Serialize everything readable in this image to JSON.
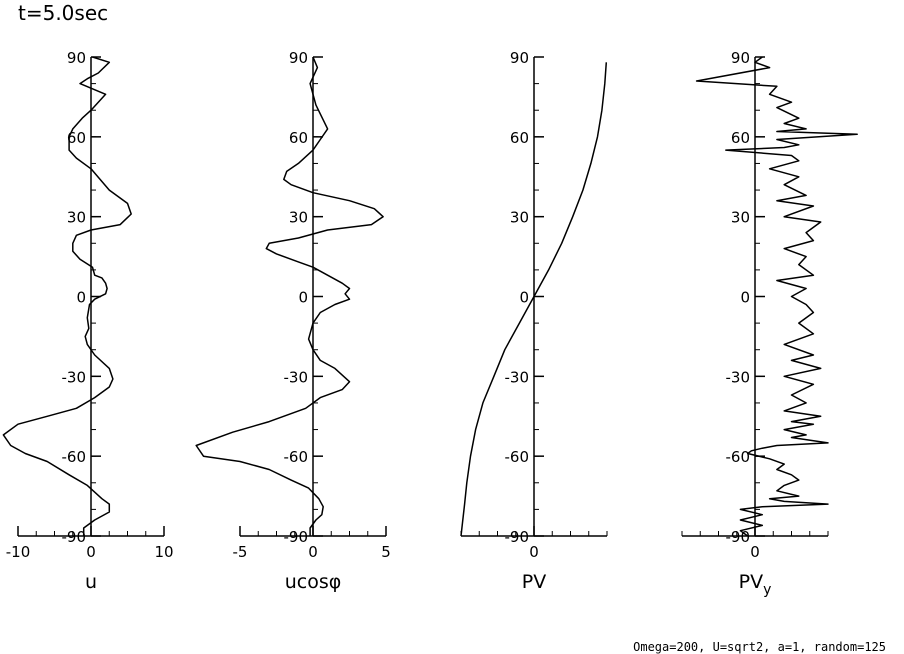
{
  "title": "t=5.0sec",
  "footer": "Omega=200, U=sqrt2, a=1, random=125",
  "chart_data": [
    {
      "type": "line",
      "id": "u",
      "xlabel": "u",
      "ylabel": "",
      "xlim": [
        -10,
        10
      ],
      "ylim": [
        -90,
        90
      ],
      "xticks": [
        -10,
        0,
        10
      ],
      "xtick_labels": [
        "-10",
        "0",
        "10"
      ],
      "yticks": [
        -90,
        -60,
        -30,
        0,
        30,
        60,
        90
      ],
      "ytick_labels": [
        "-90",
        "-60",
        "-30",
        "0",
        "30",
        "60",
        "90"
      ],
      "series": [
        {
          "name": "u",
          "x": [
            0.2,
            2.5,
            1.0,
            -0.4,
            -1.5,
            2.0,
            0.0,
            -1.2,
            -2.5,
            -3.0,
            -3.0,
            -2.0,
            0.0,
            2.5,
            5.0,
            5.5,
            4.0,
            0.0,
            -2.0,
            -2.5,
            -2.5,
            -1.5,
            0.2,
            0.5,
            1.5,
            2.0,
            2.2,
            2.0,
            0.5,
            -0.2,
            -0.5,
            -0.3,
            -0.8,
            -0.5,
            0.5,
            2.5,
            3.0,
            2.5,
            0.5,
            -2.0,
            -6.0,
            -10.0,
            -12.0,
            -11.0,
            -9.0,
            -6.0,
            -3.0,
            -0.5,
            1.5,
            2.5,
            2.5,
            0.5,
            -1.0,
            -1.0
          ],
          "y": [
            90,
            88,
            84,
            82,
            80,
            76,
            70,
            67,
            63,
            60,
            55,
            52,
            48,
            40,
            35,
            31,
            27,
            25,
            23,
            20,
            17,
            14,
            11,
            8,
            7,
            5,
            3,
            1,
            -1,
            -3,
            -8,
            -12,
            -15,
            -18,
            -22,
            -27,
            -31,
            -34,
            -38,
            -42,
            -45,
            -48,
            -52,
            -56,
            -59,
            -62,
            -67,
            -71,
            -76,
            -78,
            -81,
            -84,
            -87,
            -90
          ]
        }
      ]
    },
    {
      "type": "line",
      "id": "ucos",
      "xlabel": "ucosφ",
      "ylabel": "",
      "xlim": [
        -5,
        5
      ],
      "ylim": [
        -90,
        90
      ],
      "xticks": [
        -5,
        0,
        5
      ],
      "xtick_labels": [
        "-5",
        "0",
        "5"
      ],
      "yticks": [
        -90,
        -60,
        -30,
        0,
        30,
        60,
        90
      ],
      "ytick_labels": [
        "-90",
        "-60",
        "-30",
        "0",
        "30",
        "60",
        "90"
      ],
      "series": [
        {
          "name": "ucosφ",
          "x": [
            0.0,
            0.3,
            -0.2,
            0.0,
            0.2,
            1.0,
            0.5,
            0.0,
            -1.0,
            -1.8,
            -2.0,
            -1.5,
            0.0,
            2.5,
            4.2,
            4.8,
            4.0,
            1.0,
            -1.0,
            -3.0,
            -3.2,
            -2.5,
            -1.0,
            0.0,
            1.0,
            2.0,
            2.5,
            2.2,
            2.5,
            1.5,
            0.5,
            0.0,
            -0.3,
            0.0,
            0.5,
            1.5,
            2.5,
            2.0,
            0.5,
            -0.5,
            -3.0,
            -5.5,
            -8.0,
            -7.5,
            -5.0,
            -3.0,
            -1.5,
            -0.3,
            0.4,
            0.7,
            0.6,
            0.2,
            -0.2,
            -0.2
          ],
          "y": [
            90,
            86,
            80,
            76,
            72,
            63,
            59,
            55,
            50,
            47,
            44,
            42,
            39,
            36,
            33,
            30,
            27,
            25,
            22,
            20,
            18,
            16,
            13,
            11,
            8,
            5,
            3,
            1,
            -1,
            -3,
            -6,
            -10,
            -16,
            -20,
            -24,
            -27,
            -32,
            -35,
            -38,
            -42,
            -47,
            -51,
            -56,
            -60,
            -62,
            -65,
            -69,
            -72,
            -76,
            -79,
            -82,
            -84,
            -87,
            -90
          ]
        }
      ]
    },
    {
      "type": "line",
      "id": "pv",
      "xlabel": "PV",
      "ylabel": "",
      "xlim": [
        -1,
        1
      ],
      "ylim": [
        -90,
        90
      ],
      "xticks": [
        0
      ],
      "xtick_labels": [
        "0"
      ],
      "yticks": [
        -90,
        -60,
        -30,
        0,
        30,
        60,
        90
      ],
      "ytick_labels": [
        "-90",
        "-60",
        "-30",
        "0",
        "30",
        "60",
        "90"
      ],
      "series": [
        {
          "name": "PV",
          "x": [
            -1.0,
            -0.98,
            -0.95,
            -0.92,
            -0.87,
            -0.8,
            -0.7,
            -0.55,
            -0.4,
            -0.2,
            0.0,
            0.2,
            0.38,
            0.53,
            0.67,
            0.78,
            0.87,
            0.93,
            0.97,
            0.99
          ],
          "y": [
            -90,
            -85,
            -78,
            -70,
            -60,
            -50,
            -40,
            -30,
            -20,
            -10,
            0,
            10,
            20,
            30,
            40,
            50,
            60,
            70,
            80,
            88
          ]
        }
      ]
    },
    {
      "type": "line",
      "id": "pvy",
      "xlabel": "PV",
      "xlabel_sub": "y",
      "ylabel": "",
      "xlim": [
        -1,
        1
      ],
      "ylim": [
        -90,
        90
      ],
      "xticks": [
        0
      ],
      "xtick_labels": [
        "0"
      ],
      "yticks": [
        -90,
        -60,
        -30,
        0,
        30,
        60,
        90
      ],
      "ytick_labels": [
        "-90",
        "-60",
        "-30",
        "0",
        "30",
        "60",
        "90"
      ],
      "series": [
        {
          "name": "PVy",
          "x": [
            0.1,
            0.0,
            0.2,
            -0.8,
            0.3,
            0.2,
            0.5,
            0.3,
            0.6,
            0.4,
            0.7,
            0.3,
            1.4,
            0.3,
            0.6,
            0.4,
            -0.4,
            0.5,
            0.6,
            0.2,
            0.6,
            0.4,
            0.7,
            0.3,
            0.8,
            0.4,
            0.9,
            0.7,
            0.8,
            0.4,
            0.7,
            0.6,
            0.8,
            0.3,
            0.7,
            0.5,
            0.7,
            0.8,
            0.6,
            0.8,
            0.4,
            0.8,
            0.5,
            0.9,
            0.4,
            0.8,
            0.5,
            0.7,
            0.4,
            0.9,
            0.5,
            0.8,
            0.4,
            0.7,
            0.5,
            1.0,
            0.3,
            0.1,
            -0.05,
            -0.1,
            0.2,
            0.4,
            0.3,
            0.5,
            0.6,
            0.4,
            0.3,
            0.6,
            0.2,
            0.4,
            1.0,
            0.1,
            -0.2,
            0.1,
            -0.2,
            0.1,
            -0.2,
            -0.1
          ],
          "y": [
            90,
            88,
            86,
            81,
            79,
            76,
            73,
            71,
            67,
            65,
            63,
            62,
            61,
            59,
            57,
            56,
            55,
            53,
            51,
            48,
            45,
            42,
            38,
            36,
            34,
            30,
            28,
            24,
            21,
            18,
            15,
            12,
            8,
            6,
            3,
            0,
            -3,
            -6,
            -10,
            -14,
            -18,
            -22,
            -24,
            -27,
            -30,
            -33,
            -37,
            -40,
            -43,
            -45,
            -47,
            -48,
            -50,
            -52,
            -53,
            -55,
            -56,
            -57,
            -58,
            -59,
            -61,
            -63,
            -65,
            -67,
            -69,
            -71,
            -73,
            -75,
            -76,
            -77,
            -78,
            -79,
            -80,
            -82,
            -84,
            -86,
            -88,
            -90
          ]
        }
      ]
    }
  ]
}
